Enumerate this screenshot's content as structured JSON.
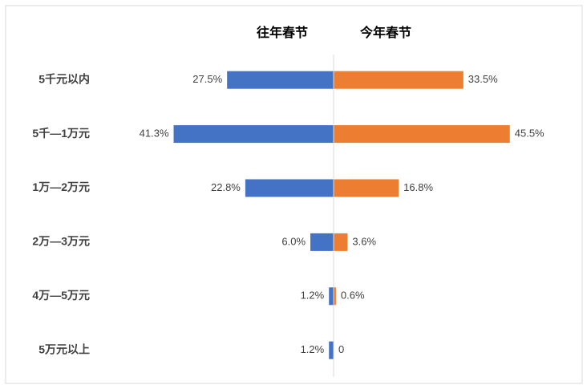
{
  "chart_data": {
    "type": "butterfly-bar",
    "categories": [
      "5千元以内",
      "5千—1万元",
      "1万—2万元",
      "2万—3万元",
      "4万—5万元",
      "5万元以上"
    ],
    "series": [
      {
        "name": "往年春节",
        "color": "#4472c4",
        "values": [
          27.5,
          41.3,
          22.8,
          6.0,
          1.2,
          1.2
        ],
        "value_labels": [
          "27.5%",
          "41.3%",
          "22.8%",
          "6.0%",
          "1.2%",
          "1.2%"
        ]
      },
      {
        "name": "今年春节",
        "color": "#ed7d31",
        "values": [
          33.5,
          45.5,
          16.8,
          3.6,
          0.6,
          0
        ],
        "value_labels": [
          "33.5%",
          "45.5%",
          "16.8%",
          "3.6%",
          "0.6%",
          "0"
        ]
      }
    ]
  }
}
